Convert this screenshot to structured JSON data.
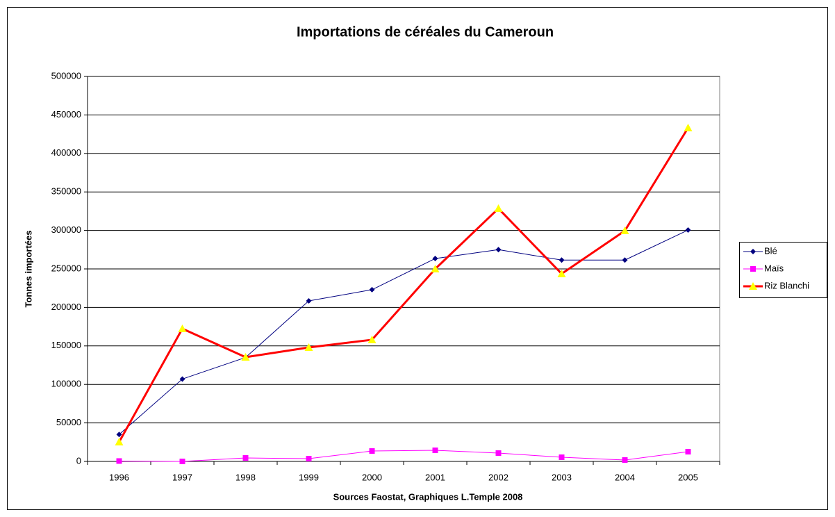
{
  "chart_data": {
    "type": "line",
    "title": "Importations de céréales du Cameroun",
    "x_label": "Sources Faostat, Graphiques L.Temple 2008",
    "y_label": "Tonnes importées",
    "categories": [
      "1996",
      "1997",
      "1998",
      "1999",
      "2000",
      "2001",
      "2002",
      "2003",
      "2004",
      "2005"
    ],
    "series": [
      {
        "name": "Blé",
        "color": "#000080",
        "marker_color": "#000080",
        "marker": "diamond",
        "line_width": 1,
        "values": [
          35000,
          107000,
          135000,
          208500,
          223000,
          263500,
          275000,
          261500,
          261500,
          300500
        ]
      },
      {
        "name": "Maïs",
        "color": "#ff00ff",
        "marker_color": "#ff00ff",
        "marker": "square",
        "line_width": 1,
        "values": [
          500,
          0,
          4500,
          3600,
          13500,
          14400,
          10800,
          5400,
          1800,
          12600
        ]
      },
      {
        "name": "Riz Blanchi",
        "color": "#ff0000",
        "marker_color": "#ffff00",
        "marker": "triangle",
        "line_width": 3,
        "values": [
          25300,
          172400,
          135400,
          148000,
          158000,
          250000,
          328500,
          243700,
          299600,
          433200
        ]
      }
    ],
    "ylim": [
      0,
      500000
    ],
    "yticks": [
      0,
      50000,
      100000,
      150000,
      200000,
      250000,
      300000,
      350000,
      400000,
      450000,
      500000
    ],
    "grid": true,
    "legend": "right"
  }
}
